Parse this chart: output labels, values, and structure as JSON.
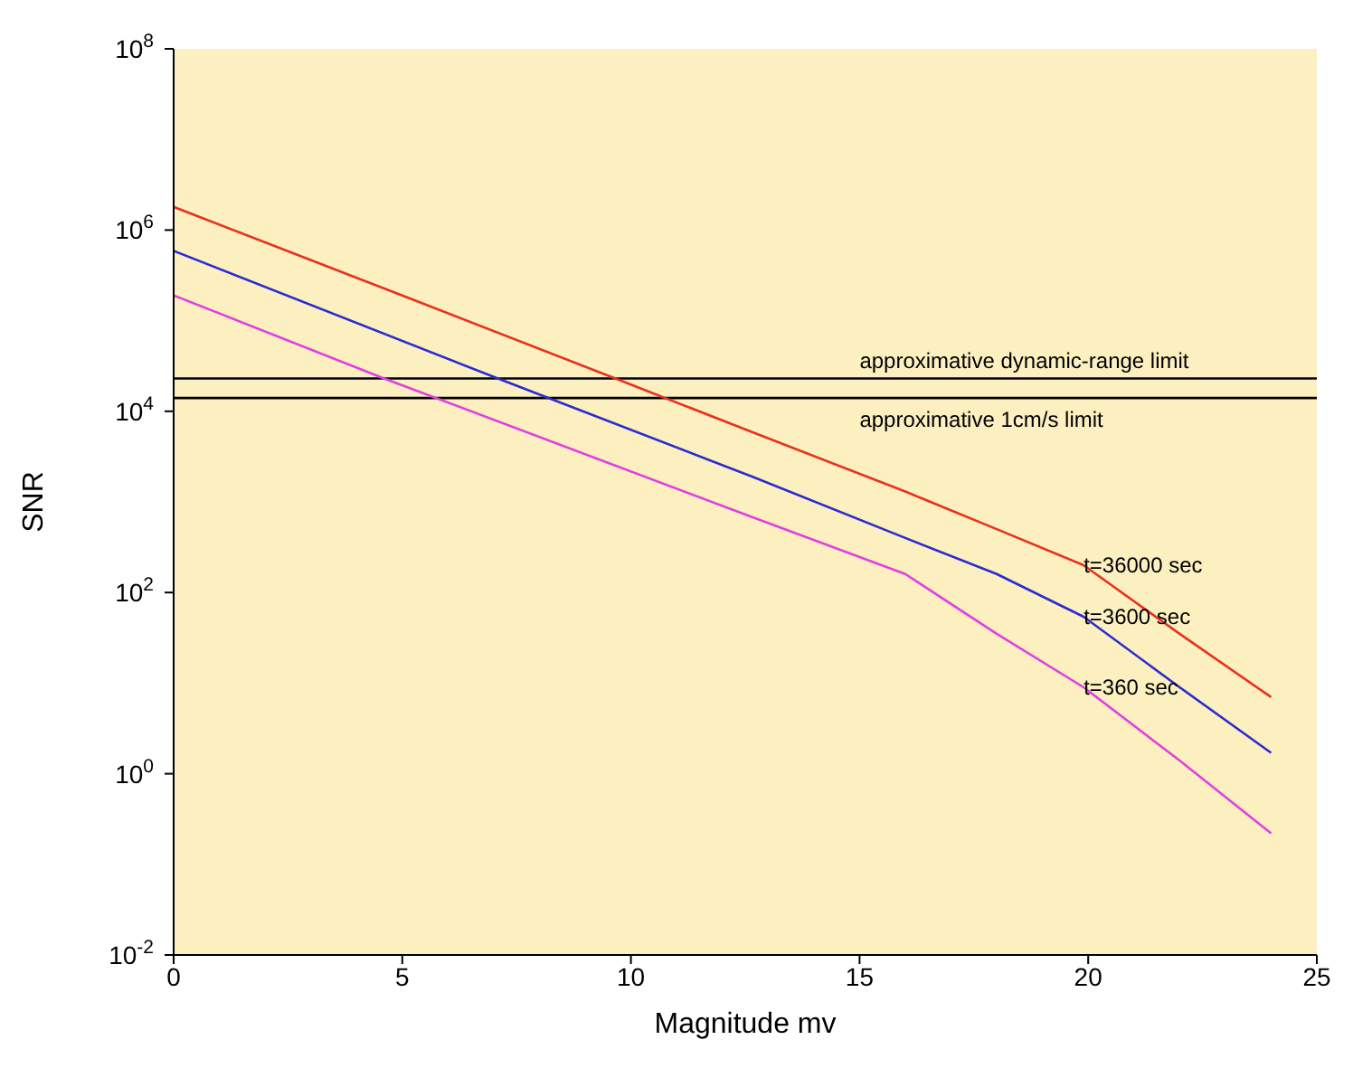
{
  "chart_data": {
    "type": "line",
    "xlabel": "Magnitude mv",
    "ylabel": "SNR",
    "log": "y",
    "grid": false,
    "legend": false,
    "marker": "none",
    "line_style": "solid",
    "xlim": [
      0,
      25
    ],
    "xticks": [
      0,
      5,
      10,
      15,
      20,
      25
    ],
    "ylim": [
      0.01,
      100000000
    ],
    "yticks": [
      {
        "value": 0.01,
        "label": "10$^{-2}$"
      },
      {
        "value": 1,
        "label": "10$^{0}$"
      },
      {
        "value": 100,
        "label": "10$^{2}$"
      },
      {
        "value": 10000,
        "label": "10$^{4}$"
      },
      {
        "value": 1000000,
        "label": "10$^{6}$"
      },
      {
        "value": 100000000,
        "label": "10$^{8}$"
      }
    ],
    "series": [
      {
        "name": "t=36000 sec",
        "color": "#e8321e",
        "x": [
          0,
          5,
          9.66,
          12.65,
          16,
          18,
          19.9,
          22,
          24
        ],
        "values": [
          1800000,
          190000,
          23000,
          5900,
          1300,
          500,
          200,
          35,
          7
        ]
      },
      {
        "name": "t=3600 sec",
        "color": "#2b2bd0",
        "x": [
          0,
          7.09,
          12.65,
          16,
          18,
          19.9,
          22,
          24
        ],
        "values": [
          590000,
          23000,
          1900,
          400,
          160,
          54,
          9,
          1.7
        ]
      },
      {
        "name": "t=360 sec",
        "color": "#e040e0",
        "x": [
          0,
          4.6,
          12.65,
          16,
          18,
          19.9,
          22,
          24
        ],
        "values": [
          190000,
          23000,
          680,
          160,
          35,
          9,
          1.4,
          0.22
        ]
      }
    ],
    "ref_lines": [
      {
        "axis": "y",
        "value": 23000,
        "label": "approximative dynamic-range limit",
        "color": "#000000"
      },
      {
        "axis": "y",
        "value": 14000,
        "label": "approximative 1cm/s limit",
        "color": "#000000"
      }
    ]
  }
}
